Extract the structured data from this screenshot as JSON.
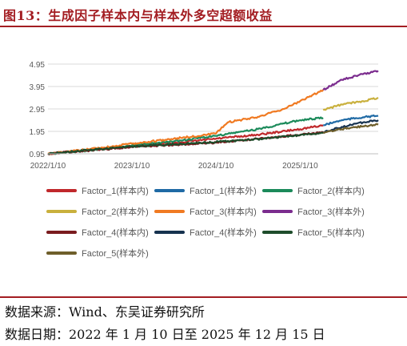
{
  "figure": {
    "title": "图13：生成因子样本内与样本外多空超额收益",
    "source": "数据来源：Wind、东吴证券研究所",
    "date_range": "数据日期：2022 年 1 月 10 日至 2025 年 12 月 15 日"
  },
  "chart_data": {
    "type": "line",
    "title": "",
    "xlabel": "",
    "ylabel": "",
    "x_start": "2022-01-10",
    "x_end": "2025-12-15",
    "x_ticks": [
      "2022/1/10",
      "2023/1/10",
      "2024/1/10",
      "2025/1/10"
    ],
    "y_ticks": [
      "0.95",
      "1.95",
      "2.95",
      "3.95",
      "4.95"
    ],
    "ylim": [
      0.95,
      4.95
    ],
    "grid": "horizontal",
    "legend_position": "bottom",
    "series": [
      {
        "name": "Factor_1(样本内)",
        "color": "#c0282b",
        "points": [
          [
            "2022-01-10",
            0.95
          ],
          [
            "2022-07-10",
            1.12
          ],
          [
            "2023-01-10",
            1.3
          ],
          [
            "2023-07-10",
            1.43
          ],
          [
            "2024-01-10",
            1.62
          ],
          [
            "2024-07-10",
            1.8
          ],
          [
            "2025-01-10",
            2.05
          ],
          [
            "2025-04-20",
            2.22
          ]
        ]
      },
      {
        "name": "Factor_1(样本外)",
        "color": "#1f6aa5",
        "points": [
          [
            "2025-04-20",
            2.22
          ],
          [
            "2025-07-10",
            2.45
          ],
          [
            "2025-10-10",
            2.58
          ],
          [
            "2025-12-15",
            2.65
          ]
        ]
      },
      {
        "name": "Factor_2(样本内)",
        "color": "#1b8a5a",
        "points": [
          [
            "2022-01-10",
            0.95
          ],
          [
            "2022-07-10",
            1.1
          ],
          [
            "2023-01-10",
            1.32
          ],
          [
            "2023-07-10",
            1.5
          ],
          [
            "2024-01-10",
            1.75
          ],
          [
            "2024-07-10",
            2.05
          ],
          [
            "2025-01-10",
            2.45
          ],
          [
            "2025-04-20",
            2.55
          ]
        ]
      },
      {
        "name": "Factor_2(样本外)",
        "color": "#c9b03d",
        "points": [
          [
            "2025-04-20",
            2.9
          ],
          [
            "2025-07-10",
            3.15
          ],
          [
            "2025-10-10",
            3.3
          ],
          [
            "2025-12-15",
            3.45
          ]
        ]
      },
      {
        "name": "Factor_3(样本内)",
        "color": "#f07a22",
        "points": [
          [
            "2022-01-10",
            0.95
          ],
          [
            "2022-07-10",
            1.15
          ],
          [
            "2023-01-10",
            1.4
          ],
          [
            "2023-07-10",
            1.62
          ],
          [
            "2024-01-10",
            1.85
          ],
          [
            "2024-03-01",
            2.35
          ],
          [
            "2024-07-10",
            2.6
          ],
          [
            "2024-11-01",
            2.95
          ],
          [
            "2025-01-10",
            3.3
          ],
          [
            "2025-04-20",
            3.8
          ]
        ]
      },
      {
        "name": "Factor_3(样本外)",
        "color": "#7b2c8e",
        "points": [
          [
            "2025-04-20",
            3.8
          ],
          [
            "2025-07-10",
            4.25
          ],
          [
            "2025-10-10",
            4.5
          ],
          [
            "2025-12-15",
            4.65
          ]
        ]
      },
      {
        "name": "Factor_4(样本内)",
        "color": "#7a1c1f",
        "points": [
          [
            "2022-01-10",
            0.95
          ],
          [
            "2022-07-10",
            1.1
          ],
          [
            "2023-01-10",
            1.25
          ],
          [
            "2023-07-10",
            1.35
          ],
          [
            "2024-01-10",
            1.45
          ],
          [
            "2024-07-10",
            1.62
          ],
          [
            "2025-01-10",
            1.8
          ],
          [
            "2025-04-20",
            1.9
          ]
        ]
      },
      {
        "name": "Factor_4(样本外)",
        "color": "#16324f",
        "points": [
          [
            "2025-04-20",
            1.9
          ],
          [
            "2025-07-10",
            2.15
          ],
          [
            "2025-10-10",
            2.35
          ],
          [
            "2025-12-15",
            2.45
          ]
        ]
      },
      {
        "name": "Factor_5(样本内)",
        "color": "#1e4d2b",
        "points": [
          [
            "2022-01-10",
            0.95
          ],
          [
            "2022-07-10",
            1.12
          ],
          [
            "2023-01-10",
            1.28
          ],
          [
            "2023-07-10",
            1.38
          ],
          [
            "2024-01-10",
            1.48
          ],
          [
            "2024-07-10",
            1.6
          ],
          [
            "2025-01-10",
            1.78
          ],
          [
            "2025-04-20",
            1.88
          ]
        ]
      },
      {
        "name": "Factor_5(样本外)",
        "color": "#6e5e2a",
        "points": [
          [
            "2025-04-20",
            1.88
          ],
          [
            "2025-07-10",
            2.05
          ],
          [
            "2025-10-10",
            2.18
          ],
          [
            "2025-12-15",
            2.25
          ]
        ]
      }
    ]
  }
}
